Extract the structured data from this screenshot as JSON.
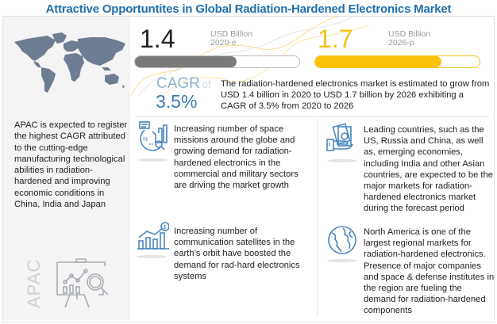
{
  "title": "Attractive Opportuntites in Global Radiation-Hardened Electronics Market",
  "colors": {
    "title": "#1f6fae",
    "accent_yellow": "#fbc20a",
    "bar_gray": "#7a7a7a",
    "cagr_blue": "#3b78b4",
    "panel_bg": "#f4f4f5",
    "icon_blue": "#4a86c0"
  },
  "left_panel": {
    "map_icon": "world-map",
    "text": "APAC is expected to register the highest CAGR attributed to the cutting-edge manufacturing technological abilities in radiation-hardened and improving economic conditions in China, India and Japan",
    "region_label": "APAC",
    "illustration_icon": "presentation-board-analytics"
  },
  "market_values": [
    {
      "value": "1.4",
      "unit": "USD Billion",
      "year": "2020-e",
      "progress_percent": 62
    },
    {
      "value": "1.7",
      "unit": "USD Billion",
      "year": "2026-p",
      "progress_percent": 77
    }
  ],
  "cagr": {
    "label": "CAGR",
    "of": "of",
    "value": "3.5%",
    "summary": "The radiation-hardened electronics market is estimated to grow from USD 1.4 billion in 2020 to USD 1.7 billion by 2026 exhibiting a CAGR of 3.5% from 2020 to 2026"
  },
  "insights": [
    {
      "icon": "analytics-report",
      "text": "Increasing number of space missions around the globe and growing demand for radiation-hardened electronics in the commercial and military sectors are driving the market growth"
    },
    {
      "icon": "growth-chart-dollar",
      "text": "Increasing number of communication satellites in the earth’s orbit have boosted the demand for rad-hard electronics systems"
    },
    {
      "icon": "hand-money",
      "text": "Leading countries, such as the US, Russia and China, as well as, emerging economies, including India and other Asian countries, are expected to be the major markets for radiation-hardened electronics market during the forecast period"
    },
    {
      "icon": "globe",
      "text": "North America is one of the largest regional markets for radiation-hardened electronics. Presence of major companies and space & defense institutes in the region are fueling the demand for radiation-hardened components"
    }
  ]
}
